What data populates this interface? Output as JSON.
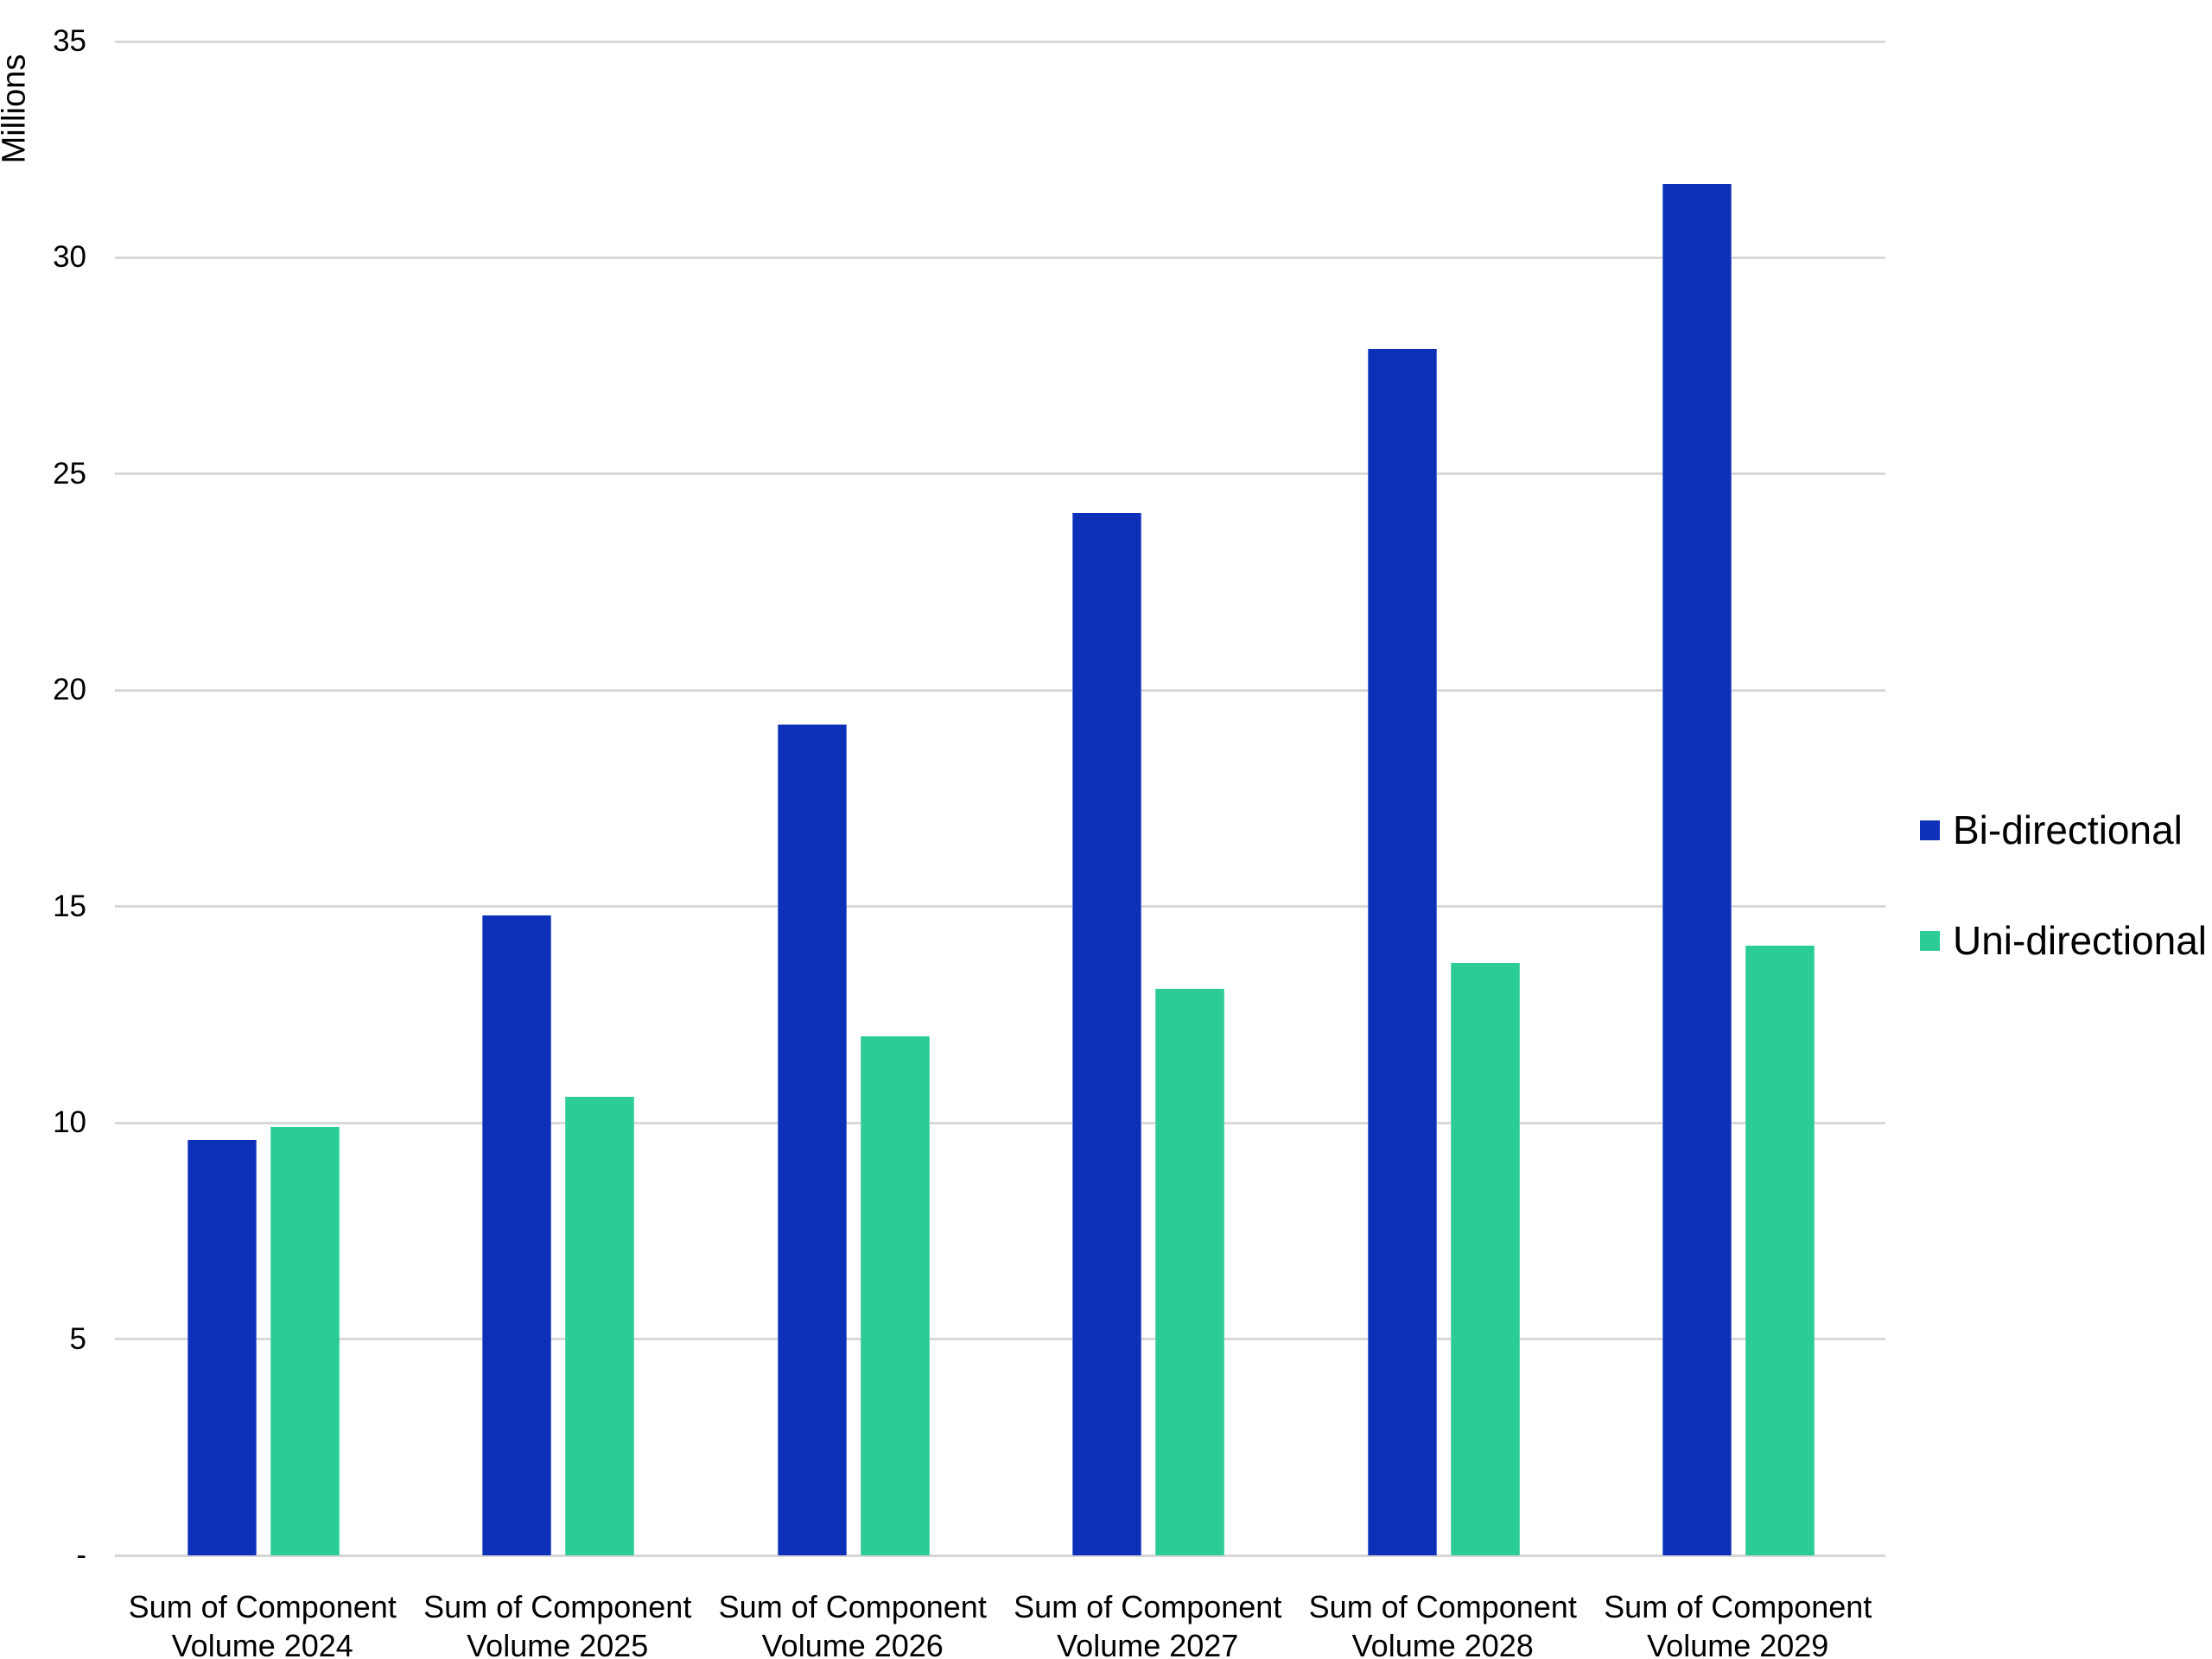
{
  "y_axis": {
    "title": "Millions",
    "tick_labels": [
      "35",
      "30",
      "25",
      "20",
      "15",
      "10",
      "5",
      "-"
    ]
  },
  "chart_data": {
    "type": "bar",
    "title": "",
    "xlabel": "",
    "ylabel": "Millions",
    "ylim": [
      0,
      35
    ],
    "y_tick_step": 5,
    "grid": true,
    "legend_position": "right",
    "categories": [
      "Sum of Component Volume 2024",
      "Sum of Component Volume 2025",
      "Sum of Component Volume 2026",
      "Sum of Component Volume 2027",
      "Sum of Component Volume 2028",
      "Sum of Component Volume 2029"
    ],
    "series": [
      {
        "name": "Bi-directional",
        "color": "#0c31b8",
        "values": [
          9.6,
          14.8,
          19.2,
          24.1,
          27.9,
          31.7
        ]
      },
      {
        "name": "Uni-directional",
        "color": "#2bcc96",
        "values": [
          9.9,
          10.6,
          12.0,
          13.1,
          13.7,
          14.1
        ]
      }
    ]
  }
}
